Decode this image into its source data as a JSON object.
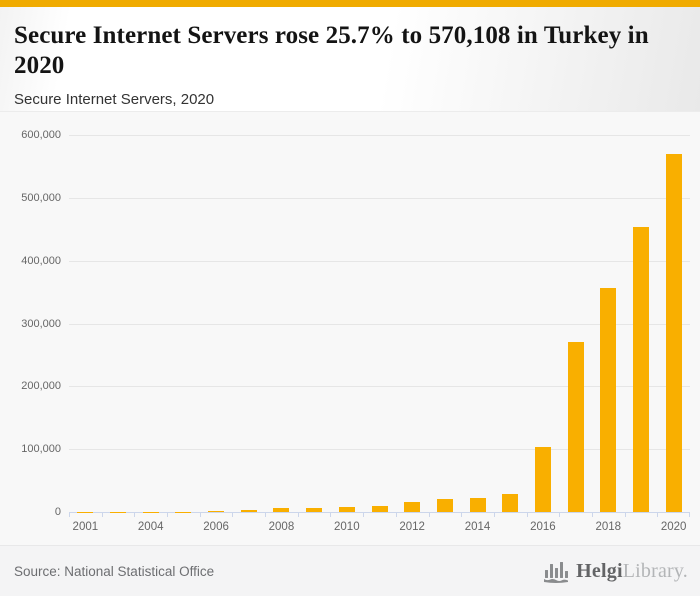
{
  "accent_color": "#F0AB00",
  "header": {
    "title": "Secure Internet Servers rose 25.7% to 570,108 in Turkey in 2020",
    "subtitle": "Secure Internet Servers, 2020"
  },
  "chart_data": {
    "type": "bar",
    "title": "Secure Internet Servers, 2020",
    "categories": [
      "2001",
      "2002",
      "2004",
      "2005",
      "2006",
      "2007",
      "2008",
      "2009",
      "2010",
      "2011",
      "2012",
      "2013",
      "2014",
      "2015",
      "2016",
      "2017",
      "2018",
      "2019",
      "2020"
    ],
    "values": [
      150,
      250,
      400,
      650,
      1100,
      2800,
      6000,
      6000,
      7800,
      9900,
      16000,
      21000,
      23000,
      29000,
      103000,
      271000,
      357000,
      453500,
      570108
    ],
    "x_tick_labels_shown": [
      "2001",
      "2004",
      "2006",
      "2008",
      "2010",
      "2012",
      "2014",
      "2016",
      "2018",
      "2020"
    ],
    "y_tick_labels": [
      "0",
      "100,000",
      "200,000",
      "300,000",
      "400,000",
      "500,000",
      "600,000"
    ],
    "ylim": [
      0,
      600000
    ],
    "y_tick_interval": 100000,
    "xlabel": "",
    "ylabel": "",
    "grid": true,
    "legend": "none",
    "bar_color": "#F9AF00",
    "grid_color": "#e6e6e6",
    "axis_color": "#ccd6eb",
    "label_color": "#666666",
    "plot_background": "#f8f8f8"
  },
  "footer": {
    "source": "Source: National Statistical Office",
    "logo": {
      "brand_primary": "Helgi",
      "brand_secondary": "Library",
      "suffix": ".",
      "icon": "bar-chart-logo-icon"
    }
  }
}
